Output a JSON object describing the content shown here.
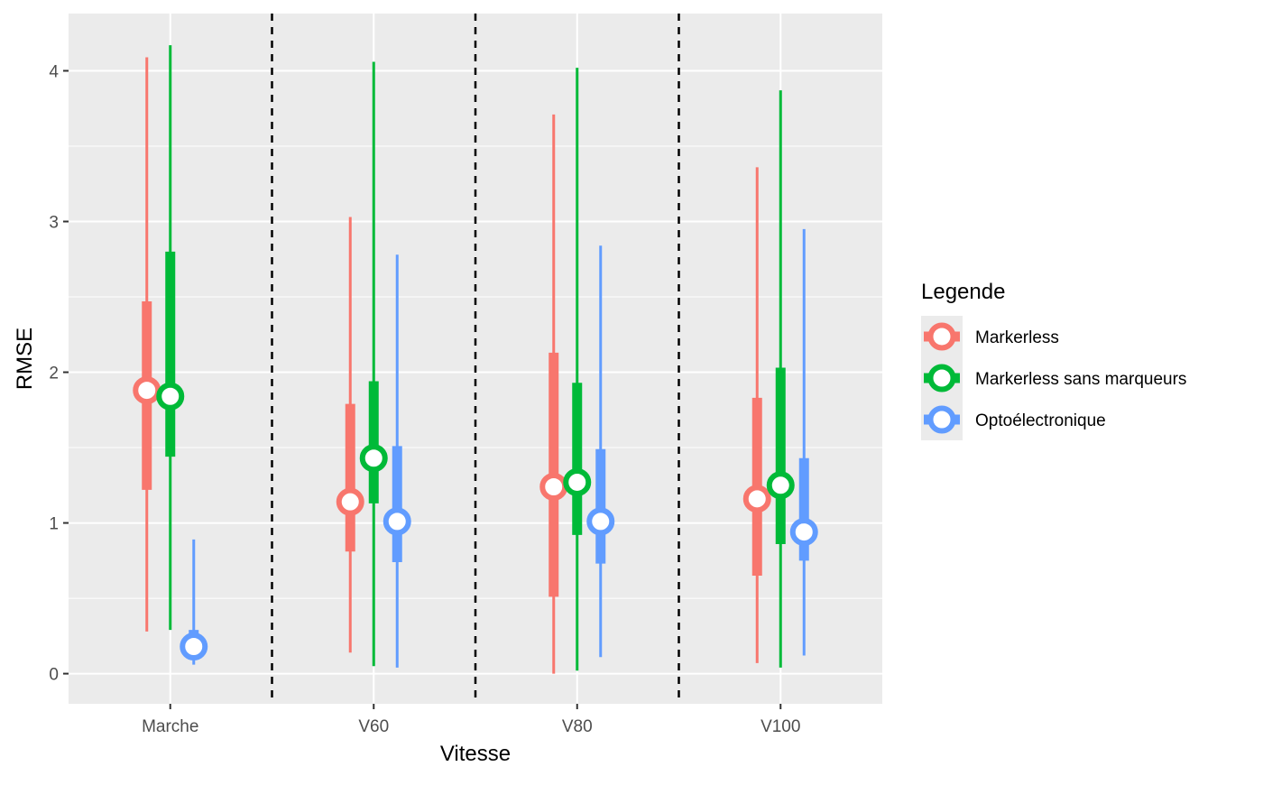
{
  "chart_data": {
    "type": "pointrange",
    "xlabel": "Vitesse",
    "ylabel": "RMSE",
    "ylim": [
      -0.2,
      4.38
    ],
    "yticks": [
      0,
      1,
      2,
      3,
      4
    ],
    "grid": true,
    "categories": [
      "Marche",
      "V60",
      "V80",
      "V100"
    ],
    "legend": {
      "title": "Legende",
      "position": "right"
    },
    "series": [
      {
        "name": "Markerless",
        "color": "#F8766D",
        "points": [
          {
            "category": "Marche",
            "median": 1.88,
            "q1": 1.22,
            "q3": 2.47,
            "min": 0.28,
            "max": 4.09
          },
          {
            "category": "V60",
            "median": 1.14,
            "q1": 0.81,
            "q3": 1.79,
            "min": 0.14,
            "max": 3.03
          },
          {
            "category": "V80",
            "median": 1.24,
            "q1": 0.51,
            "q3": 2.13,
            "min": 0.0,
            "max": 3.71
          },
          {
            "category": "V100",
            "median": 1.16,
            "q1": 0.65,
            "q3": 1.83,
            "min": 0.07,
            "max": 3.36
          }
        ]
      },
      {
        "name": "Markerless sans marqueurs",
        "color": "#00BA38",
        "points": [
          {
            "category": "Marche",
            "median": 1.84,
            "q1": 1.44,
            "q3": 2.8,
            "min": 0.29,
            "max": 4.17
          },
          {
            "category": "V60",
            "median": 1.43,
            "q1": 1.13,
            "q3": 1.94,
            "min": 0.05,
            "max": 4.06
          },
          {
            "category": "V80",
            "median": 1.27,
            "q1": 0.92,
            "q3": 1.93,
            "min": 0.02,
            "max": 4.02
          },
          {
            "category": "V100",
            "median": 1.25,
            "q1": 0.86,
            "q3": 2.03,
            "min": 0.04,
            "max": 3.87
          }
        ]
      },
      {
        "name": "Optoélectronique",
        "color": "#619CFF",
        "points": [
          {
            "category": "Marche",
            "median": 0.18,
            "q1": 0.1,
            "q3": 0.29,
            "min": 0.06,
            "max": 0.89
          },
          {
            "category": "V60",
            "median": 1.01,
            "q1": 0.74,
            "q3": 1.51,
            "min": 0.04,
            "max": 2.78
          },
          {
            "category": "V80",
            "median": 1.01,
            "q1": 0.73,
            "q3": 1.49,
            "min": 0.11,
            "max": 2.84
          },
          {
            "category": "V100",
            "median": 0.94,
            "q1": 0.75,
            "q3": 1.43,
            "min": 0.12,
            "max": 2.95
          }
        ]
      }
    ]
  }
}
